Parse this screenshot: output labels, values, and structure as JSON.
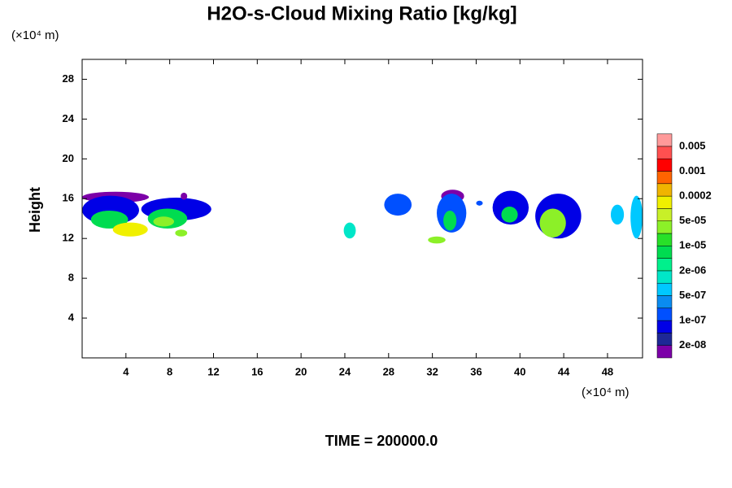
{
  "chart_data": {
    "type": "contour",
    "title": "H2O-s-Cloud Mixing Ratio [kg/kg]",
    "ylabel": "Height",
    "y_unit": "(×10⁴ m)",
    "x_unit": "(×10⁴ m)",
    "footer": "TIME = 200000.0",
    "xlim": [
      0,
      51.2
    ],
    "ylim": [
      0,
      30
    ],
    "xticks": [
      4,
      8,
      12,
      16,
      20,
      24,
      28,
      32,
      36,
      40,
      44,
      48
    ],
    "yticks": [
      4,
      8,
      12,
      16,
      20,
      24,
      28
    ],
    "colors": [
      "#7c00a8",
      "#1e2896",
      "#0000e6",
      "#0050ff",
      "#0a8cf0",
      "#00c8ff",
      "#00e6c8",
      "#00f08c",
      "#00dc50",
      "#28e028",
      "#8cf028",
      "#c8f028",
      "#f0f000",
      "#f0b400",
      "#ff6400",
      "#ff0000",
      "#ff5050",
      "#ff9a9a"
    ],
    "levels": [
      {
        "value": 2e-08,
        "label": "2e-08"
      },
      {
        "value": 1e-07,
        "label": "1e-07"
      },
      {
        "value": 5e-07,
        "label": "5e-07"
      },
      {
        "value": 2e-06,
        "label": "2e-06"
      },
      {
        "value": 1e-05,
        "label": "1e-05"
      },
      {
        "value": 5e-05,
        "label": "5e-05"
      },
      0.0002,
      0.001,
      0.005
    ],
    "clouds": [
      {
        "x": [
          0,
          6.1
        ],
        "y": [
          15.6,
          16.7
        ],
        "level": 0
      },
      {
        "x": [
          0,
          5.2
        ],
        "y": [
          13.4,
          16.3
        ],
        "level": 2
      },
      {
        "x": [
          0.8,
          4.2
        ],
        "y": [
          13.0,
          14.8
        ],
        "level": 8
      },
      {
        "x": [
          2.8,
          6.0
        ],
        "y": [
          12.2,
          13.6
        ],
        "level": 12
      },
      {
        "x": [
          5.4,
          11.8
        ],
        "y": [
          13.8,
          16.1
        ],
        "level": 2
      },
      {
        "x": [
          9.0,
          9.6
        ],
        "y": [
          15.9,
          16.6
        ],
        "level": 0
      },
      {
        "x": [
          6.0,
          9.6
        ],
        "y": [
          13.0,
          15.0
        ],
        "level": 8
      },
      {
        "x": [
          6.5,
          8.4
        ],
        "y": [
          13.2,
          14.2
        ],
        "level": 10
      },
      {
        "x": [
          8.5,
          9.6
        ],
        "y": [
          12.2,
          12.9
        ],
        "level": 10
      },
      {
        "x": [
          23.9,
          25.0
        ],
        "y": [
          12.0,
          13.6
        ],
        "level": 6
      },
      {
        "x": [
          27.6,
          30.1
        ],
        "y": [
          14.3,
          16.5
        ],
        "level": 3
      },
      {
        "x": [
          31.6,
          33.2
        ],
        "y": [
          11.5,
          12.2
        ],
        "level": 10
      },
      {
        "x": [
          32.8,
          34.9
        ],
        "y": [
          15.6,
          16.9
        ],
        "level": 0
      },
      {
        "x": [
          32.4,
          35.1
        ],
        "y": [
          12.6,
          16.5
        ],
        "level": 3
      },
      {
        "x": [
          33.0,
          34.2
        ],
        "y": [
          12.8,
          14.8
        ],
        "level": 8
      },
      {
        "x": [
          36.0,
          36.6
        ],
        "y": [
          15.3,
          15.8
        ],
        "level": 3
      },
      {
        "x": [
          37.5,
          40.8
        ],
        "y": [
          13.4,
          16.8
        ],
        "level": 2
      },
      {
        "x": [
          38.3,
          39.8
        ],
        "y": [
          13.6,
          15.2
        ],
        "level": 8
      },
      {
        "x": [
          41.4,
          45.6
        ],
        "y": [
          12.0,
          16.5
        ],
        "level": 2
      },
      {
        "x": [
          41.8,
          44.2
        ],
        "y": [
          12.1,
          15.0
        ],
        "level": 10
      },
      {
        "x": [
          48.3,
          49.5
        ],
        "y": [
          13.4,
          15.4
        ],
        "level": 5
      },
      {
        "x": [
          50.1,
          51.2
        ],
        "y": [
          12.0,
          16.3
        ],
        "level": 5
      }
    ]
  }
}
